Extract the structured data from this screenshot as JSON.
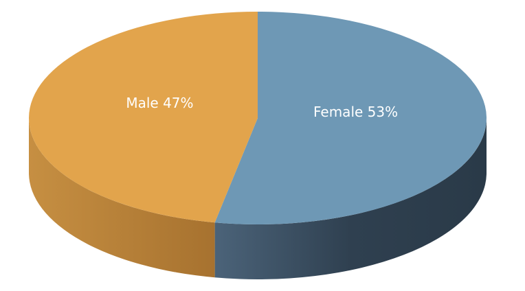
{
  "chart_data": {
    "type": "pie",
    "values": [
      53,
      47
    ],
    "value_labels": [
      "Female 53%",
      "Male 47%"
    ],
    "colors": [
      "#6e98b5",
      "#e2a44c"
    ]
  }
}
